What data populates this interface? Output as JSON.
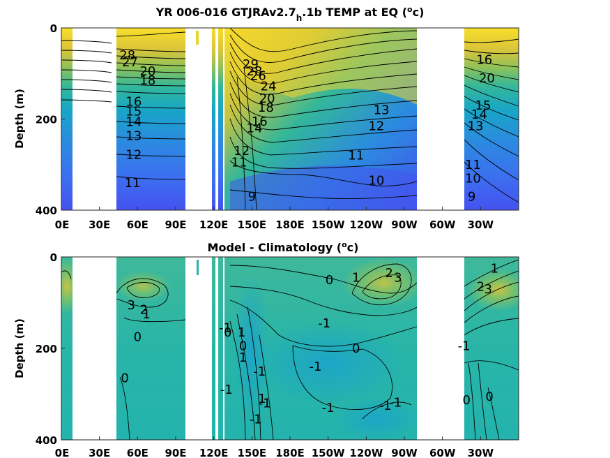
{
  "chart_data": [
    {
      "type": "heatmap",
      "title": "YR 006-016 GTJRAv2.7",
      "title_sub": "h",
      "title_after": ".1b TEMP at EQ (",
      "title_sup": "o",
      "title_end": "c)",
      "ylabel": "Depth (m)",
      "xlabel": "",
      "ylim": [
        0,
        400
      ],
      "y_reversed": true,
      "y_ticks": [
        "0",
        "200",
        "400"
      ],
      "x_ticks": [
        "0E",
        "30E",
        "60E",
        "90E",
        "120E",
        "150E",
        "180E",
        "150W",
        "120W",
        "90W",
        "60W",
        "30W"
      ],
      "colormap": "parula",
      "contour_labels": [
        {
          "text": "28",
          "lon": 52,
          "depth": 60
        },
        {
          "text": "27",
          "lon": 54,
          "depth": 75
        },
        {
          "text": "20",
          "lon": 68,
          "depth": 95
        },
        {
          "text": "18",
          "lon": 68,
          "depth": 115
        },
        {
          "text": "16",
          "lon": 57,
          "depth": 162
        },
        {
          "text": "15",
          "lon": 57,
          "depth": 183
        },
        {
          "text": "14",
          "lon": 57,
          "depth": 206
        },
        {
          "text": "13",
          "lon": 57,
          "depth": 237
        },
        {
          "text": "12",
          "lon": 57,
          "depth": 278
        },
        {
          "text": "11",
          "lon": 56,
          "depth": 340
        },
        {
          "text": "29",
          "lon": 149,
          "depth": 80
        },
        {
          "text": "28",
          "lon": 152,
          "depth": 95
        },
        {
          "text": "26",
          "lon": 155,
          "depth": 105
        },
        {
          "text": "24",
          "lon": 163,
          "depth": 128
        },
        {
          "text": "20",
          "lon": 162,
          "depth": 155
        },
        {
          "text": "18",
          "lon": 161,
          "depth": 175
        },
        {
          "text": "16",
          "lon": 156,
          "depth": 205
        },
        {
          "text": "14",
          "lon": 152,
          "depth": 220
        },
        {
          "text": "12",
          "lon": 142,
          "depth": 270
        },
        {
          "text": "11",
          "lon": 140,
          "depth": 295
        },
        {
          "text": "9",
          "lon": 150,
          "depth": 370
        },
        {
          "text": "13",
          "lon": 252,
          "depth": 180
        },
        {
          "text": "12",
          "lon": 248,
          "depth": 215
        },
        {
          "text": "11",
          "lon": 232,
          "depth": 280
        },
        {
          "text": "10",
          "lon": 248,
          "depth": 335
        },
        {
          "text": "16",
          "lon": 333,
          "depth": 70
        },
        {
          "text": "20",
          "lon": 335,
          "depth": 110
        },
        {
          "text": "15",
          "lon": 332,
          "depth": 170
        },
        {
          "text": "14",
          "lon": 329,
          "depth": 190
        },
        {
          "text": "13",
          "lon": 326,
          "depth": 215
        },
        {
          "text": "11",
          "lon": 324,
          "depth": 300
        },
        {
          "text": "10",
          "lon": 324,
          "depth": 330
        },
        {
          "text": "9",
          "lon": 323,
          "depth": 370
        }
      ]
    },
    {
      "type": "heatmap",
      "title": "Model - Climatology (",
      "title_sup": "o",
      "title_end": "c)",
      "ylabel": "Depth (m)",
      "xlabel": "",
      "ylim": [
        0,
        400
      ],
      "y_reversed": true,
      "y_ticks": [
        "0",
        "200",
        "400"
      ],
      "x_ticks": [
        "0E",
        "30E",
        "60E",
        "90E",
        "120E",
        "150E",
        "180E",
        "150W",
        "120W",
        "90W",
        "60W",
        "30W"
      ],
      "colormap": "parula",
      "contour_labels": [
        {
          "text": "3",
          "lon": 55,
          "depth": 105
        },
        {
          "text": "2",
          "lon": 65,
          "depth": 115
        },
        {
          "text": "1",
          "lon": 67,
          "depth": 125
        },
        {
          "text": "0",
          "lon": 60,
          "depth": 175
        },
        {
          "text": "0",
          "lon": 50,
          "depth": 265
        },
        {
          "text": "-1",
          "lon": 129,
          "depth": 155
        },
        {
          "text": "0",
          "lon": 131,
          "depth": 165
        },
        {
          "text": "-1",
          "lon": 130,
          "depth": 290
        },
        {
          "text": "1",
          "lon": 142,
          "depth": 165
        },
        {
          "text": "0",
          "lon": 143,
          "depth": 195
        },
        {
          "text": "1",
          "lon": 143,
          "depth": 220
        },
        {
          "text": "-1",
          "lon": 156,
          "depth": 250
        },
        {
          "text": "1",
          "lon": 158,
          "depth": 310
        },
        {
          "text": "-1",
          "lon": 160,
          "depth": 320
        },
        {
          "text": "-1",
          "lon": 153,
          "depth": 355
        },
        {
          "text": "0",
          "lon": 211,
          "depth": 50
        },
        {
          "text": "1",
          "lon": 232,
          "depth": 45
        },
        {
          "text": "-1",
          "lon": 207,
          "depth": 145
        },
        {
          "text": "-1",
          "lon": 200,
          "depth": 240
        },
        {
          "text": "0",
          "lon": 232,
          "depth": 200
        },
        {
          "text": "-1",
          "lon": 210,
          "depth": 330
        },
        {
          "text": "-1",
          "lon": 255,
          "depth": 325
        },
        {
          "text": "-1",
          "lon": 263,
          "depth": 318
        },
        {
          "text": "2",
          "lon": 258,
          "depth": 35
        },
        {
          "text": "3",
          "lon": 265,
          "depth": 45
        },
        {
          "text": "1",
          "lon": 341,
          "depth": 25
        },
        {
          "text": "2",
          "lon": 330,
          "depth": 65
        },
        {
          "text": "3",
          "lon": 336,
          "depth": 70
        },
        {
          "text": "-1",
          "lon": 317,
          "depth": 195
        },
        {
          "text": "0",
          "lon": 319,
          "depth": 313
        },
        {
          "text": "0",
          "lon": 337,
          "depth": 305
        }
      ]
    }
  ]
}
